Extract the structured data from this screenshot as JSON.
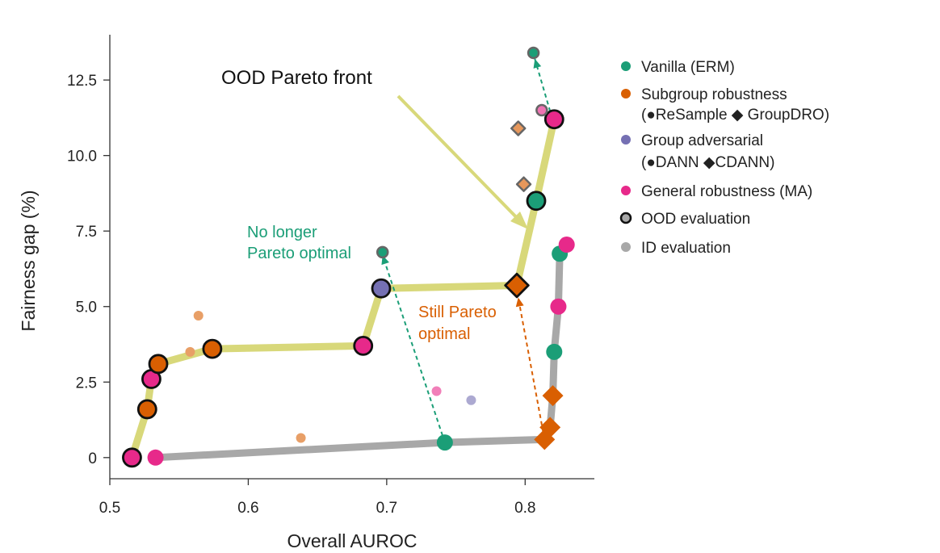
{
  "chart_data": {
    "type": "scatter",
    "xlabel": "Overall AUROC",
    "ylabel": "Fairness gap (%)",
    "xlim": [
      0.5,
      0.85
    ],
    "ylim": [
      -0.7,
      14.0
    ],
    "xticks": [
      0.5,
      0.6,
      0.7,
      0.8
    ],
    "xtick_labels": [
      "0.5",
      "0.6",
      "0.7",
      "0.8"
    ],
    "yticks": [
      0,
      2.5,
      5.0,
      7.5,
      10.0,
      12.5
    ],
    "ytick_labels": [
      "0",
      "2.5",
      "5.0",
      "7.5",
      "10.0",
      "12.5"
    ],
    "colors": {
      "vanilla": "#1b9e77",
      "subgroup": "#d95f02",
      "adversarial": "#7570b3",
      "general": "#e7298a",
      "ood_front": "#d8d87a",
      "id_front": "#a8a8a8"
    },
    "ood_pareto_front": [
      [
        0.516,
        0.0
      ],
      [
        0.527,
        1.6
      ],
      [
        0.53,
        2.6
      ],
      [
        0.535,
        3.1
      ],
      [
        0.574,
        3.6
      ],
      [
        0.683,
        3.7
      ],
      [
        0.696,
        5.6
      ],
      [
        0.794,
        5.7
      ],
      [
        0.808,
        8.5
      ],
      [
        0.821,
        11.2
      ]
    ],
    "id_pareto_front": [
      [
        0.533,
        0.0
      ],
      [
        0.742,
        0.5
      ],
      [
        0.814,
        0.6
      ],
      [
        0.818,
        1.0
      ],
      [
        0.82,
        2.05
      ],
      [
        0.821,
        3.5
      ],
      [
        0.824,
        5.0
      ],
      [
        0.825,
        6.75
      ]
    ],
    "points": [
      {
        "x": 0.516,
        "y": 0.0,
        "method": "general",
        "marker": "circle",
        "eval": "ood"
      },
      {
        "x": 0.527,
        "y": 1.6,
        "method": "subgroup",
        "marker": "circle",
        "eval": "ood"
      },
      {
        "x": 0.53,
        "y": 2.6,
        "method": "general",
        "marker": "circle",
        "eval": "ood"
      },
      {
        "x": 0.535,
        "y": 3.1,
        "method": "subgroup",
        "marker": "circle",
        "eval": "ood"
      },
      {
        "x": 0.574,
        "y": 3.6,
        "method": "subgroup",
        "marker": "circle",
        "eval": "ood"
      },
      {
        "x": 0.683,
        "y": 3.7,
        "method": "general",
        "marker": "circle",
        "eval": "ood"
      },
      {
        "x": 0.696,
        "y": 5.6,
        "method": "adversarial",
        "marker": "circle",
        "eval": "ood"
      },
      {
        "x": 0.794,
        "y": 5.7,
        "method": "subgroup",
        "marker": "diamond",
        "eval": "ood"
      },
      {
        "x": 0.808,
        "y": 8.5,
        "method": "vanilla",
        "marker": "circle",
        "eval": "ood"
      },
      {
        "x": 0.821,
        "y": 11.2,
        "method": "general",
        "marker": "circle",
        "eval": "ood"
      },
      {
        "x": 0.697,
        "y": 6.8,
        "method": "vanilla",
        "marker": "circle",
        "eval": "ood",
        "size": "small"
      },
      {
        "x": 0.806,
        "y": 13.4,
        "method": "vanilla",
        "marker": "circle",
        "eval": "ood",
        "size": "small"
      },
      {
        "x": 0.812,
        "y": 11.5,
        "method": "general",
        "marker": "circle",
        "eval": "ood",
        "size": "small",
        "faded": true
      },
      {
        "x": 0.795,
        "y": 10.9,
        "method": "subgroup",
        "marker": "diamond",
        "eval": "ood",
        "size": "small",
        "faded": true
      },
      {
        "x": 0.799,
        "y": 9.05,
        "method": "subgroup",
        "marker": "diamond",
        "eval": "ood",
        "size": "small",
        "faded": true
      },
      {
        "x": 0.533,
        "y": 0.0,
        "method": "general",
        "marker": "circle",
        "eval": "id"
      },
      {
        "x": 0.742,
        "y": 0.5,
        "method": "vanilla",
        "marker": "circle",
        "eval": "id"
      },
      {
        "x": 0.814,
        "y": 0.6,
        "method": "subgroup",
        "marker": "diamond",
        "eval": "id"
      },
      {
        "x": 0.818,
        "y": 1.0,
        "method": "subgroup",
        "marker": "diamond",
        "eval": "id"
      },
      {
        "x": 0.82,
        "y": 2.05,
        "method": "subgroup",
        "marker": "diamond",
        "eval": "id"
      },
      {
        "x": 0.821,
        "y": 3.5,
        "method": "vanilla",
        "marker": "circle",
        "eval": "id"
      },
      {
        "x": 0.824,
        "y": 5.0,
        "method": "general",
        "marker": "circle",
        "eval": "id"
      },
      {
        "x": 0.825,
        "y": 6.75,
        "method": "vanilla",
        "marker": "circle",
        "eval": "id"
      },
      {
        "x": 0.83,
        "y": 7.05,
        "method": "general",
        "marker": "circle",
        "eval": "id"
      },
      {
        "x": 0.564,
        "y": 4.7,
        "method": "subgroup",
        "marker": "circle",
        "eval": "id",
        "size": "tiny",
        "faded": true
      },
      {
        "x": 0.558,
        "y": 3.5,
        "method": "subgroup",
        "marker": "circle",
        "eval": "id",
        "size": "tiny",
        "faded": true
      },
      {
        "x": 0.638,
        "y": 0.65,
        "method": "subgroup",
        "marker": "circle",
        "eval": "id",
        "size": "tiny",
        "faded": true
      },
      {
        "x": 0.736,
        "y": 2.2,
        "method": "general",
        "marker": "circle",
        "eval": "id",
        "size": "tiny",
        "faded": true
      },
      {
        "x": 0.761,
        "y": 1.9,
        "method": "adversarial",
        "marker": "circle",
        "eval": "id",
        "size": "tiny",
        "faded": true
      }
    ],
    "arrows": [
      {
        "from": [
          0.742,
          0.5
        ],
        "to": [
          0.697,
          6.7
        ],
        "method": "vanilla"
      },
      {
        "from": [
          0.814,
          0.6
        ],
        "to": [
          0.795,
          5.3
        ],
        "method": "subgroup"
      },
      {
        "from": [
          0.821,
          11.0
        ],
        "to": [
          0.807,
          13.2
        ],
        "method": "vanilla"
      }
    ],
    "annotations": {
      "ood_front": "OOD Pareto front",
      "no_longer_line1": "No longer",
      "no_longer_line2": "Pareto optimal",
      "still_line1": "Still Pareto",
      "still_line2": "optimal"
    },
    "legend": {
      "placement": "right",
      "items": [
        {
          "label": "Vanilla (ERM)",
          "symbol": "dot",
          "color_key": "vanilla"
        },
        {
          "label": "Subgroup robustness",
          "symbol": "dot",
          "color_key": "subgroup"
        },
        {
          "label": "(●ReSample  ◆ GroupDRO)",
          "symbol": "none"
        },
        {
          "label": "Group adversarial",
          "symbol": "dot",
          "color_key": "adversarial"
        },
        {
          "label": "(●DANN  ◆CDANN)",
          "symbol": "none"
        },
        {
          "label": "General robustness (MA)",
          "symbol": "dot",
          "color_key": "general"
        },
        {
          "label": "OOD evaluation",
          "symbol": "ood-ring"
        },
        {
          "label": "ID evaluation",
          "symbol": "id-dot"
        }
      ]
    }
  }
}
